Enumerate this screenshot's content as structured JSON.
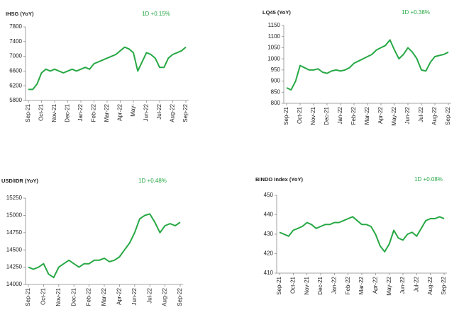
{
  "chart_data": [
    {
      "type": "line",
      "title": "IHSG (YoY)",
      "annotation": "1D +0.15%",
      "color": "#27a844",
      "categories": [
        "Sep-21",
        null,
        null,
        "Oct-21",
        null,
        null,
        "Nov-21",
        null,
        null,
        "Dec-21",
        null,
        null,
        "Jan-22",
        null,
        null,
        "Feb-22",
        null,
        null,
        "Mar-22",
        null,
        null,
        "Apr-22",
        null,
        null,
        "May-",
        null,
        null,
        "Jun-22",
        null,
        null,
        "Jul-22",
        null,
        null,
        "Aug-22",
        null,
        null,
        "Sep-22"
      ],
      "values": [
        6100,
        6100,
        6250,
        6550,
        6650,
        6600,
        6650,
        6600,
        6550,
        6600,
        6650,
        6600,
        6650,
        6700,
        6650,
        6800,
        6850,
        6900,
        6950,
        7000,
        7050,
        7150,
        7250,
        7200,
        7100,
        6600,
        6850,
        7100,
        7050,
        6950,
        6700,
        6700,
        6950,
        7050,
        7100,
        7150,
        7250
      ],
      "ylim": [
        5800,
        7800
      ],
      "yticks": [
        5800,
        6200,
        6600,
        7000,
        7400,
        7800
      ]
    },
    {
      "type": "line",
      "title": "LQ45 (YoY)",
      "annotation": "1D +0.38%",
      "color": "#27a844",
      "categories": [
        "Sep-21",
        null,
        null,
        "Oct-21",
        null,
        null,
        "Nov-21",
        null,
        null,
        "Dec-21",
        null,
        null,
        "Jan-22",
        null,
        null,
        "Feb-22",
        null,
        null,
        "Mar-22",
        null,
        null,
        "Apr-22",
        null,
        null,
        "May-22",
        null,
        null,
        "Jun-22",
        null,
        null,
        "Jul-22",
        null,
        null,
        "Aug-22",
        null,
        null,
        "Sep-22"
      ],
      "values": [
        870,
        860,
        900,
        970,
        960,
        950,
        950,
        955,
        940,
        935,
        945,
        950,
        945,
        950,
        960,
        980,
        990,
        1000,
        1010,
        1020,
        1040,
        1050,
        1060,
        1085,
        1040,
        1000,
        1020,
        1050,
        1030,
        1000,
        950,
        945,
        985,
        1010,
        1015,
        1020,
        1030
      ],
      "ylim": [
        800,
        1150
      ],
      "yticks": [
        800,
        850,
        900,
        950,
        1000,
        1050,
        1100,
        1150
      ]
    },
    {
      "type": "line",
      "title": "USD/IDR  (YoY)",
      "annotation": "1D +0.48%",
      "color": "#27a844",
      "categories": [
        "Sep-21",
        null,
        null,
        "Oct-21",
        null,
        null,
        "Nov-21",
        null,
        null,
        "Dec-21",
        null,
        null,
        "Feb-22",
        null,
        null,
        "Mar-22",
        null,
        null,
        "Apr-22",
        null,
        null,
        "Jun-22",
        null,
        null,
        "Jul-22",
        null,
        null,
        "Aug-22",
        null,
        null,
        "Sep-22"
      ],
      "values": [
        14250,
        14220,
        14250,
        14300,
        14150,
        14100,
        14250,
        14300,
        14350,
        14300,
        14250,
        14300,
        14300,
        14350,
        14350,
        14380,
        14330,
        14350,
        14400,
        14500,
        14600,
        14750,
        14950,
        15000,
        15020,
        14900,
        14750,
        14850,
        14880,
        14850,
        14900
      ],
      "ylim": [
        14000,
        15250
      ],
      "yticks": [
        14000,
        14250,
        14500,
        14750,
        15000,
        15250
      ]
    },
    {
      "type": "line",
      "title": "BINDO Index (YoY)",
      "annotation": "1D +0.08%",
      "color": "#27a844",
      "categories": [
        "Sep-21",
        null,
        null,
        "Oct-21",
        null,
        null,
        "Nov-21",
        null,
        null,
        "Dec-21",
        null,
        null,
        "Jan-22",
        null,
        null,
        "Feb-22",
        null,
        null,
        "Mar-22",
        null,
        null,
        "Apr-22",
        null,
        null,
        "May-22",
        null,
        null,
        "Jun-22",
        null,
        null,
        "Jul-22",
        null,
        null,
        "Aug-22",
        null,
        null,
        "Sep-22"
      ],
      "values": [
        431,
        430,
        429,
        432,
        433,
        434,
        436,
        435,
        433,
        434,
        435,
        435,
        436,
        436,
        437,
        438,
        439,
        437,
        435,
        435,
        434,
        430,
        424,
        421,
        425,
        432,
        428,
        427,
        430,
        431,
        429,
        433,
        437,
        438,
        438,
        439,
        438
      ],
      "ylim": [
        410,
        450
      ],
      "yticks": [
        410,
        420,
        430,
        440,
        450
      ]
    }
  ]
}
